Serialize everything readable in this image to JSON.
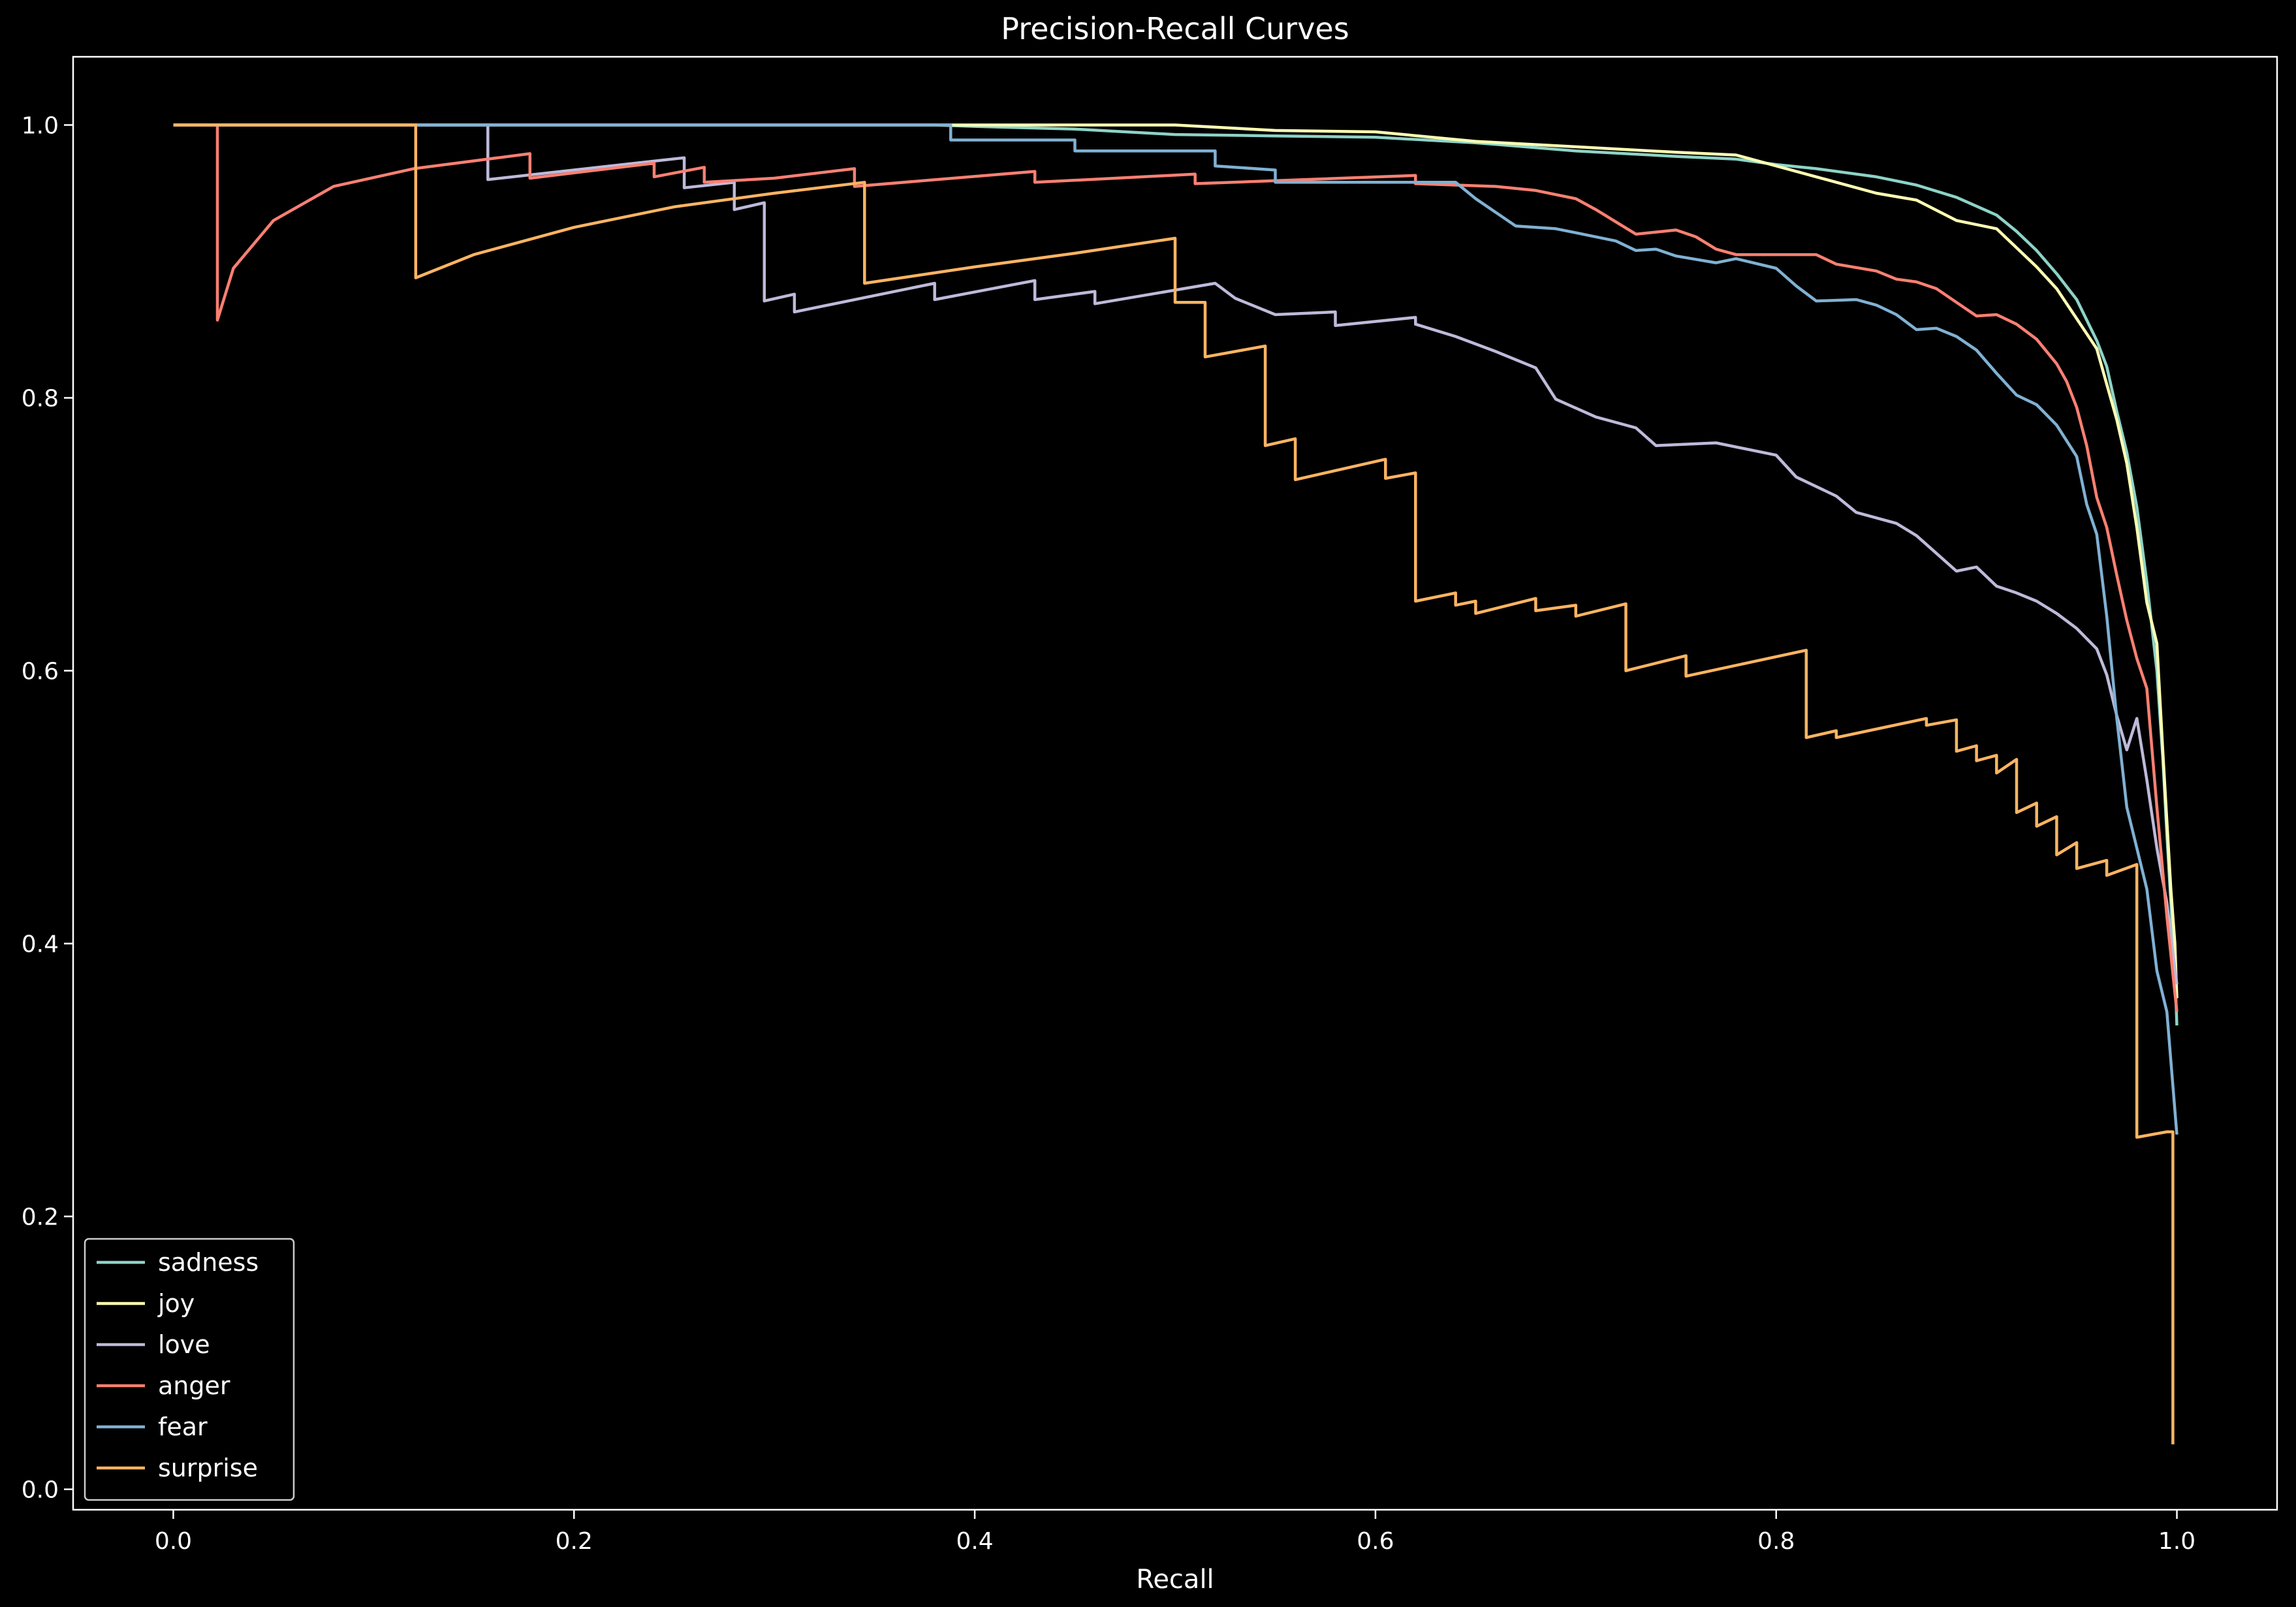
{
  "chart_data": {
    "type": "line",
    "title": "Precision-Recall Curves",
    "xlabel": "Recall",
    "ylabel": "",
    "xlim": [
      -0.05,
      1.05
    ],
    "ylim": [
      -0.015,
      1.05
    ],
    "x_ticks": [
      "0.0",
      "0.2",
      "0.4",
      "0.6",
      "0.8",
      "1.0"
    ],
    "y_ticks": [
      "0.0",
      "0.2",
      "0.4",
      "0.6",
      "0.8",
      "1.0"
    ],
    "grid": false,
    "legend_position": "lower-left",
    "background": "#000000",
    "series": [
      {
        "name": "sadness",
        "color": "#8dd3c7",
        "points": [
          [
            0.0,
            1.0
          ],
          [
            0.38,
            1.0
          ],
          [
            0.4,
            0.999
          ],
          [
            0.45,
            0.997
          ],
          [
            0.5,
            0.993
          ],
          [
            0.55,
            0.992
          ],
          [
            0.6,
            0.991
          ],
          [
            0.65,
            0.987
          ],
          [
            0.7,
            0.981
          ],
          [
            0.75,
            0.977
          ],
          [
            0.78,
            0.975
          ],
          [
            0.8,
            0.971
          ],
          [
            0.82,
            0.968
          ],
          [
            0.85,
            0.962
          ],
          [
            0.87,
            0.956
          ],
          [
            0.89,
            0.947
          ],
          [
            0.91,
            0.934
          ],
          [
            0.92,
            0.922
          ],
          [
            0.93,
            0.908
          ],
          [
            0.94,
            0.891
          ],
          [
            0.95,
            0.872
          ],
          [
            0.96,
            0.842
          ],
          [
            0.965,
            0.823
          ],
          [
            0.97,
            0.79
          ],
          [
            0.975,
            0.76
          ],
          [
            0.98,
            0.72
          ],
          [
            0.985,
            0.665
          ],
          [
            0.99,
            0.6
          ],
          [
            0.993,
            0.535
          ],
          [
            0.995,
            0.48
          ],
          [
            0.997,
            0.43
          ],
          [
            0.999,
            0.38
          ],
          [
            1.0,
            0.34
          ]
        ]
      },
      {
        "name": "joy",
        "color": "#ffffb3",
        "points": [
          [
            0.0,
            1.0
          ],
          [
            0.5,
            1.0
          ],
          [
            0.55,
            0.996
          ],
          [
            0.6,
            0.995
          ],
          [
            0.65,
            0.988
          ],
          [
            0.7,
            0.984
          ],
          [
            0.75,
            0.98
          ],
          [
            0.78,
            0.978
          ],
          [
            0.8,
            0.97
          ],
          [
            0.82,
            0.962
          ],
          [
            0.85,
            0.95
          ],
          [
            0.87,
            0.945
          ],
          [
            0.89,
            0.93
          ],
          [
            0.91,
            0.924
          ],
          [
            0.92,
            0.91
          ],
          [
            0.93,
            0.896
          ],
          [
            0.94,
            0.88
          ],
          [
            0.95,
            0.858
          ],
          [
            0.96,
            0.836
          ],
          [
            0.965,
            0.81
          ],
          [
            0.97,
            0.784
          ],
          [
            0.975,
            0.752
          ],
          [
            0.98,
            0.705
          ],
          [
            0.985,
            0.65
          ],
          [
            0.99,
            0.62
          ],
          [
            0.993,
            0.54
          ],
          [
            0.995,
            0.49
          ],
          [
            0.997,
            0.44
          ],
          [
            0.999,
            0.4
          ],
          [
            1.0,
            0.36
          ]
        ]
      },
      {
        "name": "love",
        "color": "#bebada",
        "points": [
          [
            0.0,
            1.0
          ],
          [
            0.157,
            1.0
          ],
          [
            0.157,
            0.96
          ],
          [
            0.255,
            0.976
          ],
          [
            0.255,
            0.954
          ],
          [
            0.28,
            0.958
          ],
          [
            0.28,
            0.938
          ],
          [
            0.295,
            0.943
          ],
          [
            0.295,
            0.871
          ],
          [
            0.31,
            0.876
          ],
          [
            0.31,
            0.863
          ],
          [
            0.38,
            0.884
          ],
          [
            0.38,
            0.872
          ],
          [
            0.43,
            0.886
          ],
          [
            0.43,
            0.872
          ],
          [
            0.46,
            0.878
          ],
          [
            0.46,
            0.869
          ],
          [
            0.52,
            0.884
          ],
          [
            0.53,
            0.873
          ],
          [
            0.55,
            0.861
          ],
          [
            0.58,
            0.863
          ],
          [
            0.58,
            0.853
          ],
          [
            0.62,
            0.859
          ],
          [
            0.62,
            0.854
          ],
          [
            0.64,
            0.845
          ],
          [
            0.66,
            0.834
          ],
          [
            0.68,
            0.822
          ],
          [
            0.69,
            0.799
          ],
          [
            0.71,
            0.786
          ],
          [
            0.73,
            0.778
          ],
          [
            0.74,
            0.765
          ],
          [
            0.77,
            0.767
          ],
          [
            0.8,
            0.758
          ],
          [
            0.81,
            0.742
          ],
          [
            0.83,
            0.728
          ],
          [
            0.84,
            0.716
          ],
          [
            0.86,
            0.708
          ],
          [
            0.87,
            0.699
          ],
          [
            0.88,
            0.686
          ],
          [
            0.89,
            0.673
          ],
          [
            0.9,
            0.676
          ],
          [
            0.91,
            0.662
          ],
          [
            0.92,
            0.657
          ],
          [
            0.93,
            0.651
          ],
          [
            0.94,
            0.642
          ],
          [
            0.95,
            0.631
          ],
          [
            0.96,
            0.616
          ],
          [
            0.965,
            0.597
          ],
          [
            0.97,
            0.567
          ],
          [
            0.975,
            0.542
          ],
          [
            0.98,
            0.565
          ],
          [
            0.985,
            0.52
          ],
          [
            0.99,
            0.47
          ],
          [
            0.995,
            0.43
          ],
          [
            1.0,
            0.37
          ]
        ]
      },
      {
        "name": "anger",
        "color": "#fb8072",
        "points": [
          [
            0.0,
            1.0
          ],
          [
            0.022,
            1.0
          ],
          [
            0.022,
            0.857
          ],
          [
            0.03,
            0.895
          ],
          [
            0.05,
            0.93
          ],
          [
            0.08,
            0.955
          ],
          [
            0.12,
            0.968
          ],
          [
            0.178,
            0.979
          ],
          [
            0.178,
            0.961
          ],
          [
            0.24,
            0.972
          ],
          [
            0.24,
            0.962
          ],
          [
            0.265,
            0.969
          ],
          [
            0.265,
            0.958
          ],
          [
            0.3,
            0.961
          ],
          [
            0.34,
            0.968
          ],
          [
            0.34,
            0.955
          ],
          [
            0.43,
            0.966
          ],
          [
            0.43,
            0.958
          ],
          [
            0.51,
            0.964
          ],
          [
            0.51,
            0.957
          ],
          [
            0.62,
            0.963
          ],
          [
            0.62,
            0.957
          ],
          [
            0.66,
            0.955
          ],
          [
            0.68,
            0.952
          ],
          [
            0.7,
            0.946
          ],
          [
            0.71,
            0.938
          ],
          [
            0.72,
            0.929
          ],
          [
            0.73,
            0.92
          ],
          [
            0.75,
            0.923
          ],
          [
            0.76,
            0.918
          ],
          [
            0.77,
            0.909
          ],
          [
            0.78,
            0.905
          ],
          [
            0.82,
            0.905
          ],
          [
            0.83,
            0.898
          ],
          [
            0.85,
            0.893
          ],
          [
            0.86,
            0.887
          ],
          [
            0.87,
            0.885
          ],
          [
            0.88,
            0.88
          ],
          [
            0.89,
            0.87
          ],
          [
            0.9,
            0.86
          ],
          [
            0.91,
            0.861
          ],
          [
            0.92,
            0.854
          ],
          [
            0.93,
            0.843
          ],
          [
            0.94,
            0.825
          ],
          [
            0.945,
            0.812
          ],
          [
            0.95,
            0.793
          ],
          [
            0.955,
            0.765
          ],
          [
            0.96,
            0.727
          ],
          [
            0.965,
            0.705
          ],
          [
            0.97,
            0.67
          ],
          [
            0.975,
            0.637
          ],
          [
            0.98,
            0.609
          ],
          [
            0.985,
            0.587
          ],
          [
            0.99,
            0.5
          ],
          [
            0.995,
            0.42
          ],
          [
            1.0,
            0.35
          ]
        ]
      },
      {
        "name": "fear",
        "color": "#80b1d3",
        "points": [
          [
            0.0,
            1.0
          ],
          [
            0.388,
            1.0
          ],
          [
            0.388,
            0.989
          ],
          [
            0.45,
            0.989
          ],
          [
            0.45,
            0.981
          ],
          [
            0.52,
            0.981
          ],
          [
            0.52,
            0.97
          ],
          [
            0.55,
            0.967
          ],
          [
            0.55,
            0.958
          ],
          [
            0.6,
            0.958
          ],
          [
            0.64,
            0.958
          ],
          [
            0.65,
            0.946
          ],
          [
            0.66,
            0.936
          ],
          [
            0.67,
            0.926
          ],
          [
            0.69,
            0.924
          ],
          [
            0.7,
            0.921
          ],
          [
            0.72,
            0.915
          ],
          [
            0.73,
            0.908
          ],
          [
            0.74,
            0.909
          ],
          [
            0.75,
            0.904
          ],
          [
            0.77,
            0.899
          ],
          [
            0.78,
            0.902
          ],
          [
            0.8,
            0.895
          ],
          [
            0.81,
            0.882
          ],
          [
            0.82,
            0.871
          ],
          [
            0.84,
            0.872
          ],
          [
            0.85,
            0.868
          ],
          [
            0.86,
            0.861
          ],
          [
            0.87,
            0.85
          ],
          [
            0.88,
            0.851
          ],
          [
            0.89,
            0.845
          ],
          [
            0.9,
            0.835
          ],
          [
            0.91,
            0.818
          ],
          [
            0.92,
            0.802
          ],
          [
            0.93,
            0.795
          ],
          [
            0.94,
            0.78
          ],
          [
            0.95,
            0.757
          ],
          [
            0.955,
            0.722
          ],
          [
            0.96,
            0.7
          ],
          [
            0.965,
            0.64
          ],
          [
            0.97,
            0.565
          ],
          [
            0.975,
            0.5
          ],
          [
            0.98,
            0.47
          ],
          [
            0.985,
            0.44
          ],
          [
            0.99,
            0.38
          ],
          [
            0.995,
            0.35
          ],
          [
            1.0,
            0.26
          ]
        ]
      },
      {
        "name": "surprise",
        "color": "#fdb462",
        "points": [
          [
            0.0,
            1.0
          ],
          [
            0.121,
            1.0
          ],
          [
            0.121,
            0.888
          ],
          [
            0.15,
            0.905
          ],
          [
            0.2,
            0.925
          ],
          [
            0.25,
            0.94
          ],
          [
            0.3,
            0.95
          ],
          [
            0.345,
            0.958
          ],
          [
            0.345,
            0.884
          ],
          [
            0.4,
            0.896
          ],
          [
            0.45,
            0.906
          ],
          [
            0.5,
            0.917
          ],
          [
            0.5,
            0.87
          ],
          [
            0.515,
            0.87
          ],
          [
            0.515,
            0.83
          ],
          [
            0.545,
            0.838
          ],
          [
            0.545,
            0.765
          ],
          [
            0.56,
            0.77
          ],
          [
            0.56,
            0.74
          ],
          [
            0.605,
            0.755
          ],
          [
            0.605,
            0.741
          ],
          [
            0.62,
            0.745
          ],
          [
            0.62,
            0.651
          ],
          [
            0.64,
            0.657
          ],
          [
            0.64,
            0.648
          ],
          [
            0.65,
            0.651
          ],
          [
            0.65,
            0.642
          ],
          [
            0.68,
            0.653
          ],
          [
            0.68,
            0.644
          ],
          [
            0.7,
            0.648
          ],
          [
            0.7,
            0.64
          ],
          [
            0.725,
            0.649
          ],
          [
            0.725,
            0.6
          ],
          [
            0.755,
            0.611
          ],
          [
            0.755,
            0.596
          ],
          [
            0.815,
            0.615
          ],
          [
            0.815,
            0.551
          ],
          [
            0.83,
            0.556
          ],
          [
            0.83,
            0.551
          ],
          [
            0.875,
            0.565
          ],
          [
            0.875,
            0.56
          ],
          [
            0.89,
            0.564
          ],
          [
            0.89,
            0.541
          ],
          [
            0.9,
            0.545
          ],
          [
            0.9,
            0.534
          ],
          [
            0.91,
            0.538
          ],
          [
            0.91,
            0.525
          ],
          [
            0.92,
            0.535
          ],
          [
            0.92,
            0.496
          ],
          [
            0.93,
            0.503
          ],
          [
            0.93,
            0.486
          ],
          [
            0.94,
            0.493
          ],
          [
            0.94,
            0.465
          ],
          [
            0.95,
            0.474
          ],
          [
            0.95,
            0.455
          ],
          [
            0.965,
            0.461
          ],
          [
            0.965,
            0.45
          ],
          [
            0.98,
            0.458
          ],
          [
            0.98,
            0.258
          ],
          [
            0.995,
            0.262
          ],
          [
            0.998,
            0.262
          ],
          [
            0.998,
            0.033
          ]
        ]
      }
    ]
  }
}
